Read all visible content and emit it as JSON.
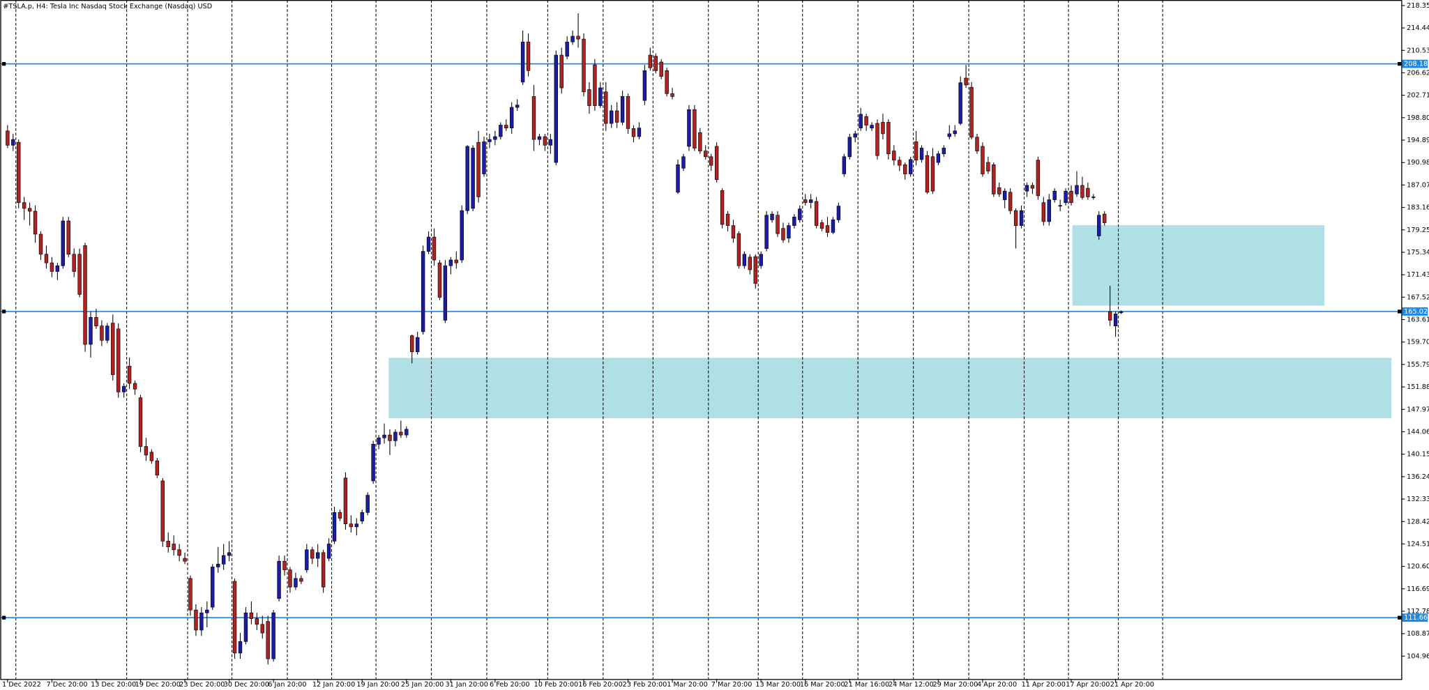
{
  "chart_data": {
    "type": "candlestick",
    "title": "#TSLA.p, H4:  Tesla Inc Nasdaq Stock Exchange (Nasdaq) USD",
    "up_color": "#1c1caa",
    "down_color": "#b22222",
    "xlim": [
      -1.32,
      251.57
    ],
    "ylim": [
      100.97,
      219.31
    ],
    "yticks": [
      218.35,
      214.44,
      210.53,
      206.62,
      202.71,
      {
        "value": 198.8,
        "label": "198.80"
      },
      194.89,
      190.98,
      187.07,
      183.16,
      179.25,
      175.34,
      171.43,
      167.52,
      163.61,
      {
        "value": 159.7,
        "label": "159.70"
      },
      155.79,
      151.88,
      147.97,
      144.06,
      140.15,
      136.24,
      132.33,
      128.42,
      124.51,
      {
        "value": 120.6,
        "label": "120.60"
      },
      116.69,
      112.78,
      108.87,
      104.96
    ],
    "xticks": [
      {
        "value": 0,
        "label": "1 Dec 2022"
      },
      {
        "value": 8,
        "label": "7 Dec 20:00"
      },
      {
        "value": 16,
        "label": "13 Dec 20:00"
      },
      {
        "value": 24,
        "label": "19 Dec 20:00"
      },
      {
        "value": 32,
        "label": "23 Dec 20:00"
      },
      {
        "value": 40,
        "label": "30 Dec 20:00"
      },
      {
        "value": 48,
        "label": "6 Jan 20:00"
      },
      {
        "value": 56,
        "label": "12 Jan 20:00"
      },
      {
        "value": 64,
        "label": "19 Jan 20:00"
      },
      {
        "value": 72,
        "label": "25 Jan 20:00"
      },
      {
        "value": 80,
        "label": "31 Jan 20:00"
      },
      {
        "value": 88,
        "label": "6 Feb 20:00"
      },
      {
        "value": 96,
        "label": "10 Feb 20:00"
      },
      {
        "value": 104,
        "label": "16 Feb 20:00"
      },
      {
        "value": 112,
        "label": "23 Feb 20:00"
      },
      {
        "value": 120,
        "label": "1 Mar 20:00"
      },
      {
        "value": 128,
        "label": "7 Mar 20:00"
      },
      {
        "value": 136,
        "label": "13 Mar 20:00"
      },
      {
        "value": 144,
        "label": "16 Mar 20:00"
      },
      {
        "value": 152,
        "label": "21 Mar 16:00"
      },
      {
        "value": 160,
        "label": "24 Mar 12:00"
      },
      {
        "value": 168,
        "label": "29 Mar 20:00"
      },
      {
        "value": 176,
        "label": "4 Apr 20:00"
      },
      {
        "value": 184,
        "label": "11 Apr 20:00"
      },
      {
        "value": 192,
        "label": "17 Apr 20:00"
      },
      {
        "value": 200,
        "label": "21 Apr 20:00"
      }
    ],
    "separators": [
      1.5,
      21.5,
      32.5,
      40.5,
      50.5,
      58.5,
      66.5,
      76.5,
      86.5,
      97.5,
      107.5,
      116.5,
      126.5,
      135.5,
      143.5,
      153.5,
      163.5,
      173.5,
      183.5,
      191.5,
      200.5,
      208.5
    ],
    "levels": [
      {
        "value": 208.18,
        "color": "#1e88e5"
      },
      {
        "value": 165.02,
        "color": "#1e88e5"
      },
      {
        "value": 111.66,
        "color": "#1e88e5"
      }
    ],
    "zones": [
      {
        "from": 68.8,
        "to": 249.8,
        "top": 156.95,
        "bottom": 146.42,
        "color": "#b0e0e6"
      },
      {
        "from": 192.2,
        "to": 237.7,
        "top": 180.07,
        "bottom": 166.04,
        "color": "#b0e0e6"
      }
    ],
    "candles": [
      [
        196.5,
        197.5,
        193.5,
        194.0
      ],
      [
        194.0,
        196.0,
        193.0,
        195.0
      ],
      [
        194.5,
        195.0,
        183.0,
        184.0
      ],
      [
        184.0,
        185.0,
        181.0,
        183.0
      ],
      [
        183.0,
        184.0,
        180.0,
        182.5
      ],
      [
        182.5,
        183.5,
        177.0,
        178.5
      ],
      [
        178.5,
        179.0,
        174.0,
        175.0
      ],
      [
        175.0,
        176.5,
        172.5,
        173.5
      ],
      [
        173.5,
        174.5,
        171.0,
        172.0
      ],
      [
        172.0,
        173.5,
        170.5,
        173.0
      ],
      [
        173.0,
        181.5,
        172.5,
        180.8
      ],
      [
        180.8,
        181.5,
        174.5,
        175.0
      ],
      [
        175.0,
        176.0,
        171.0,
        172.0
      ],
      [
        175.0,
        176.0,
        167.5,
        168.0
      ],
      [
        176.5,
        177.0,
        158.0,
        159.3
      ],
      [
        159.3,
        165.0,
        157.0,
        164.0
      ],
      [
        164.0,
        165.5,
        162.0,
        162.5
      ],
      [
        162.5,
        163.5,
        159.0,
        160.0
      ],
      [
        160.0,
        163.0,
        159.5,
        162.5
      ],
      [
        163.0,
        164.5,
        153.0,
        154.0
      ],
      [
        162.0,
        163.0,
        150.0,
        151.0
      ],
      [
        151.0,
        152.5,
        150.0,
        152.0
      ],
      [
        155.5,
        157.0,
        151.5,
        152.5
      ],
      [
        152.5,
        153.0,
        150.5,
        151.5
      ],
      [
        150.0,
        150.5,
        140.5,
        141.5
      ],
      [
        141.5,
        143.0,
        139.0,
        140.0
      ],
      [
        140.5,
        141.0,
        138.5,
        139.0
      ],
      [
        139.0,
        139.5,
        136.0,
        136.5
      ],
      [
        135.5,
        136.0,
        124.0,
        125.0
      ],
      [
        125.0,
        126.5,
        123.0,
        124.0
      ],
      [
        124.5,
        126.0,
        122.5,
        123.5
      ],
      [
        123.5,
        124.5,
        121.5,
        122.5
      ],
      [
        122.0,
        123.0,
        121.0,
        121.5
      ],
      [
        118.5,
        119.0,
        112.0,
        113.0
      ],
      [
        113.0,
        114.0,
        108.5,
        109.5
      ],
      [
        109.5,
        113.5,
        108.5,
        112.5
      ],
      [
        112.5,
        114.5,
        110.0,
        113.0
      ],
      [
        113.5,
        121.0,
        113.0,
        120.5
      ],
      [
        120.5,
        124.0,
        119.5,
        121.0
      ],
      [
        121.0,
        124.5,
        120.0,
        122.5
      ],
      [
        122.5,
        125.0,
        121.5,
        123.0
      ],
      [
        118.0,
        118.5,
        104.5,
        105.5
      ],
      [
        105.5,
        109.0,
        104.5,
        107.5
      ],
      [
        107.5,
        113.5,
        107.0,
        112.5
      ],
      [
        112.5,
        114.5,
        110.5,
        111.5
      ],
      [
        111.5,
        112.5,
        109.5,
        110.5
      ],
      [
        110.5,
        112.0,
        108.0,
        109.0
      ],
      [
        111.0,
        112.0,
        103.5,
        104.5
      ],
      [
        104.5,
        113.0,
        104.0,
        112.5
      ],
      [
        115.0,
        122.5,
        114.5,
        121.5
      ],
      [
        121.5,
        122.5,
        119.0,
        120.0
      ],
      [
        120.0,
        120.5,
        116.0,
        117.0
      ],
      [
        117.0,
        119.5,
        116.5,
        118.5
      ],
      [
        118.5,
        119.0,
        117.5,
        118.0
      ],
      [
        120.0,
        124.5,
        119.5,
        123.5
      ],
      [
        123.5,
        124.0,
        121.0,
        122.0
      ],
      [
        122.0,
        124.5,
        120.5,
        123.0
      ],
      [
        123.0,
        123.5,
        116.0,
        117.0
      ],
      [
        122.0,
        125.5,
        121.5,
        124.5
      ],
      [
        125.0,
        131.0,
        124.5,
        130.0
      ],
      [
        130.0,
        130.5,
        128.5,
        129.0
      ],
      [
        136.0,
        137.0,
        127.0,
        128.0
      ],
      [
        128.0,
        129.5,
        126.5,
        127.5
      ],
      [
        127.5,
        129.0,
        126.0,
        128.0
      ],
      [
        128.5,
        130.5,
        128.0,
        130.0
      ],
      [
        130.0,
        133.5,
        129.5,
        133.0
      ],
      [
        135.5,
        142.5,
        135.0,
        141.9
      ],
      [
        141.9,
        143.5,
        141.0,
        143.0
      ],
      [
        143.0,
        145.5,
        142.0,
        143.5
      ],
      [
        143.5,
        144.5,
        140.0,
        142.5
      ],
      [
        142.5,
        144.5,
        141.5,
        144.0
      ],
      [
        144.0,
        146.0,
        143.0,
        143.5
      ],
      [
        143.5,
        145.0,
        143.0,
        144.5
      ],
      [
        160.8,
        161.0,
        156.0,
        158.0
      ],
      [
        158.0,
        161.5,
        157.5,
        160.5
      ],
      [
        161.5,
        176.5,
        161.0,
        175.5
      ],
      [
        175.5,
        179.0,
        175.0,
        178.0
      ],
      [
        178.0,
        179.5,
        173.0,
        174.0
      ],
      [
        173.5,
        174.0,
        167.0,
        167.5
      ],
      [
        163.5,
        174.0,
        163.0,
        173.0
      ],
      [
        173.0,
        174.5,
        171.5,
        174.0
      ],
      [
        174.0,
        175.5,
        172.5,
        173.5
      ],
      [
        174.0,
        183.5,
        173.5,
        182.6
      ],
      [
        182.6,
        194.0,
        182.0,
        193.8
      ],
      [
        183.0,
        194.0,
        182.5,
        193.5
      ],
      [
        194.5,
        196.5,
        184.0,
        185.0
      ],
      [
        189.0,
        195.5,
        188.5,
        194.6
      ],
      [
        194.6,
        196.0,
        193.5,
        195.0
      ],
      [
        195.0,
        196.5,
        194.0,
        195.5
      ],
      [
        195.5,
        198.0,
        195.0,
        197.5
      ],
      [
        197.5,
        198.5,
        196.5,
        197.0
      ],
      [
        197.0,
        201.5,
        196.0,
        200.6
      ],
      [
        200.6,
        202.0,
        200.0,
        201.0
      ],
      [
        205.0,
        214.0,
        204.5,
        212.0
      ],
      [
        212.0,
        213.5,
        206.0,
        207.0
      ],
      [
        202.5,
        204.5,
        193.0,
        195.0
      ],
      [
        195.0,
        196.0,
        194.0,
        195.5
      ],
      [
        195.5,
        196.0,
        193.0,
        194.0
      ],
      [
        194.0,
        196.0,
        192.5,
        195.0
      ],
      [
        191.0,
        210.5,
        190.5,
        209.7
      ],
      [
        209.7,
        211.0,
        203.0,
        204.0
      ],
      [
        209.5,
        213.0,
        209.0,
        212.0
      ],
      [
        212.0,
        214.0,
        211.5,
        213.0
      ],
      [
        213.0,
        217.0,
        211.0,
        212.5
      ],
      [
        212.5,
        213.5,
        202.5,
        203.3
      ],
      [
        203.7,
        205.0,
        199.5,
        200.9
      ],
      [
        208.0,
        209.0,
        200.0,
        200.9
      ],
      [
        200.9,
        205.0,
        200.5,
        204.0
      ],
      [
        203.3,
        205.0,
        196.5,
        197.8
      ],
      [
        197.8,
        201.0,
        197.0,
        200.0
      ],
      [
        200.0,
        201.5,
        197.0,
        198.0
      ],
      [
        198.0,
        203.5,
        197.5,
        202.5
      ],
      [
        202.5,
        203.0,
        196.0,
        196.9
      ],
      [
        196.9,
        197.5,
        194.5,
        195.5
      ],
      [
        195.5,
        198.0,
        195.0,
        197.0
      ],
      [
        201.8,
        208.0,
        201.0,
        207.0
      ],
      [
        209.7,
        211.0,
        207.0,
        207.5
      ],
      [
        209.5,
        210.0,
        206.5,
        207.0
      ],
      [
        208.5,
        209.0,
        205.5,
        206.0
      ],
      [
        207.0,
        207.5,
        202.5,
        203.0
      ],
      [
        203.0,
        204.0,
        202.0,
        202.5
      ],
      [
        185.8,
        191.5,
        185.5,
        190.6
      ],
      [
        190.0,
        192.5,
        189.5,
        192.0
      ],
      [
        193.8,
        201.0,
        193.0,
        200.2
      ],
      [
        200.2,
        201.0,
        193.0,
        193.5
      ],
      [
        196.2,
        197.0,
        192.5,
        193.0
      ],
      [
        193.0,
        194.0,
        191.5,
        192.0
      ],
      [
        192.0,
        192.5,
        189.5,
        190.5
      ],
      [
        193.8,
        194.5,
        187.5,
        188.0
      ],
      [
        186.1,
        186.5,
        179.5,
        180.2
      ],
      [
        182.0,
        182.5,
        179.0,
        180.0
      ],
      [
        180.0,
        181.0,
        177.0,
        177.8
      ],
      [
        178.6,
        179.0,
        172.5,
        173.0
      ],
      [
        173.0,
        175.5,
        172.5,
        175.0
      ],
      [
        174.5,
        175.0,
        171.5,
        172.3
      ],
      [
        174.6,
        175.0,
        169.0,
        169.9
      ],
      [
        173.0,
        175.5,
        172.5,
        175.0
      ],
      [
        176.0,
        182.5,
        175.5,
        181.8
      ],
      [
        181.0,
        182.5,
        180.5,
        182.0
      ],
      [
        181.8,
        182.5,
        178.0,
        178.6
      ],
      [
        179.5,
        180.5,
        177.0,
        177.5
      ],
      [
        177.8,
        180.5,
        177.0,
        180.0
      ],
      [
        180.0,
        182.0,
        179.5,
        181.5
      ],
      [
        181.0,
        183.5,
        180.5,
        182.9
      ],
      [
        184.5,
        185.5,
        183.5,
        184.0
      ],
      [
        184.0,
        185.5,
        183.0,
        184.5
      ],
      [
        184.2,
        185.0,
        179.5,
        180.0
      ],
      [
        180.5,
        181.0,
        179.0,
        179.5
      ],
      [
        180.0,
        181.5,
        178.0,
        178.8
      ],
      [
        178.8,
        181.5,
        178.5,
        181.0
      ],
      [
        181.0,
        184.0,
        180.5,
        183.4
      ],
      [
        189.0,
        192.5,
        188.5,
        192.0
      ],
      [
        192.0,
        196.0,
        191.5,
        195.4
      ],
      [
        195.4,
        196.5,
        194.5,
        196.0
      ],
      [
        197.0,
        200.5,
        196.5,
        199.4
      ],
      [
        199.0,
        199.5,
        196.5,
        197.5
      ],
      [
        197.0,
        198.0,
        196.5,
        197.5
      ],
      [
        197.8,
        198.5,
        191.5,
        192.2
      ],
      [
        198.0,
        199.5,
        195.0,
        196.0
      ],
      [
        198.0,
        198.5,
        191.5,
        192.5
      ],
      [
        193.0,
        194.0,
        190.5,
        191.4
      ],
      [
        191.4,
        192.0,
        189.5,
        190.5
      ],
      [
        190.6,
        191.0,
        188.0,
        189.0
      ],
      [
        189.0,
        192.0,
        188.5,
        191.5
      ],
      [
        194.6,
        196.5,
        190.5,
        191.4
      ],
      [
        191.5,
        194.0,
        191.0,
        193.5
      ],
      [
        192.2,
        193.0,
        185.5,
        185.8
      ],
      [
        192.0,
        193.5,
        185.5,
        186.0
      ],
      [
        191.0,
        193.0,
        190.5,
        192.5
      ],
      [
        192.5,
        194.0,
        192.0,
        193.5
      ],
      [
        195.5,
        197.5,
        195.0,
        196.0
      ],
      [
        196.0,
        197.5,
        195.5,
        196.5
      ],
      [
        197.8,
        206.0,
        197.5,
        204.9
      ],
      [
        205.7,
        208.0,
        204.0,
        204.5
      ],
      [
        204.1,
        205.0,
        195.0,
        195.4
      ],
      [
        195.4,
        196.0,
        192.5,
        193.0
      ],
      [
        193.8,
        194.5,
        188.5,
        189.0
      ],
      [
        191.0,
        192.0,
        189.0,
        189.5
      ],
      [
        190.6,
        191.0,
        185.0,
        185.5
      ],
      [
        186.6,
        187.5,
        185.0,
        185.5
      ],
      [
        184.5,
        186.5,
        183.0,
        186.0
      ],
      [
        185.8,
        186.5,
        182.0,
        182.6
      ],
      [
        182.6,
        183.0,
        176.0,
        180.0
      ],
      [
        180.0,
        183.5,
        179.5,
        182.6
      ],
      [
        186.0,
        187.5,
        185.0,
        187.0
      ],
      [
        187.0,
        187.5,
        185.5,
        186.5
      ],
      [
        191.4,
        192.0,
        184.5,
        185.2
      ],
      [
        184.0,
        185.0,
        180.0,
        180.7
      ],
      [
        180.7,
        185.5,
        180.0,
        184.5
      ],
      [
        184.5,
        186.5,
        184.0,
        186.0
      ],
      [
        183.5,
        184.5,
        182.5,
        183.5
      ],
      [
        184.0,
        186.5,
        183.5,
        186.0
      ],
      [
        186.0,
        187.0,
        183.5,
        184.0
      ],
      [
        185.5,
        189.5,
        185.0,
        187.0
      ],
      [
        187.0,
        188.5,
        184.5,
        184.9
      ],
      [
        186.5,
        187.5,
        184.5,
        185.0
      ],
      [
        185.0,
        185.5,
        184.5,
        185.0
      ],
      [
        178.2,
        182.5,
        177.5,
        181.8
      ],
      [
        182.0,
        182.5,
        180.0,
        180.5
      ],
      [
        165.0,
        169.5,
        162.5,
        163.5
      ],
      [
        162.5,
        165.0,
        160.6,
        164.6
      ],
      [
        164.8,
        165.2,
        164.6,
        165.0
      ]
    ]
  }
}
